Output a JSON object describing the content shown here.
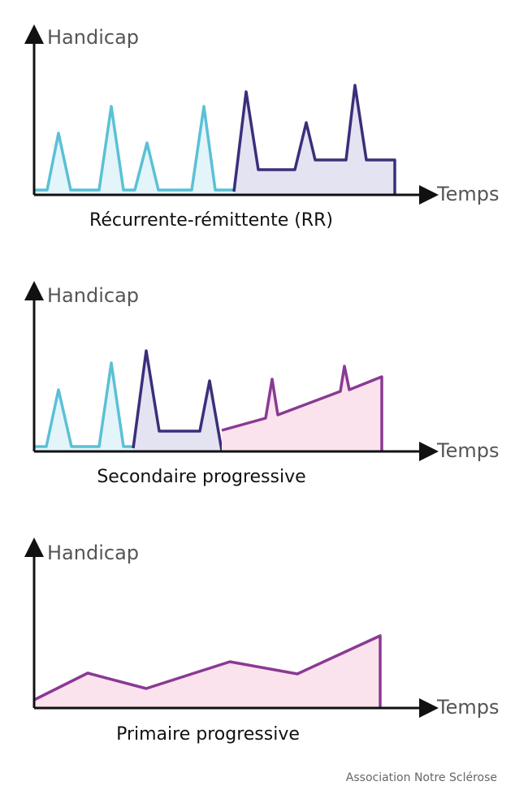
{
  "colors": {
    "relapse_light": "#5bc0d6",
    "relapse_light_fill": "#e3f5fa",
    "relapse_dark": "#3a2f7a",
    "relapse_dark_fill": "#e4e3f1",
    "progressive": "#8a3a93",
    "progressive_fill": "#fbe3ee",
    "axis": "#111111"
  },
  "charts": [
    {
      "y_label": "Handicap",
      "x_label": "Temps",
      "caption": "Récurrente-rémittente (RR)"
    },
    {
      "y_label": "Handicap",
      "x_label": "Temps",
      "caption": "Secondaire progressive"
    },
    {
      "y_label": "Handicap",
      "x_label": "Temps",
      "caption": "Primaire progressive"
    }
  ],
  "credit": "Association Notre Sclérose"
}
